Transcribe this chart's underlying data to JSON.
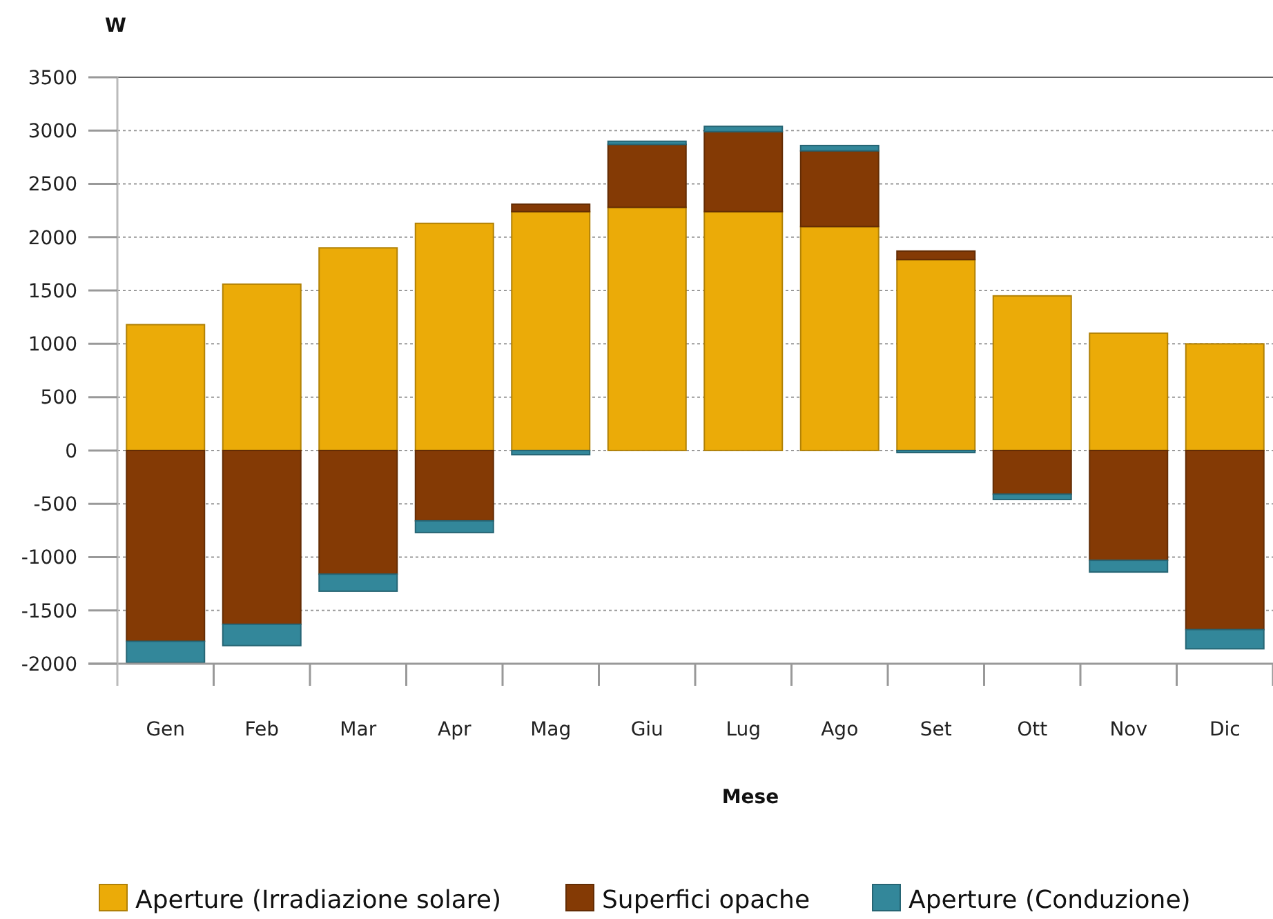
{
  "chart_data": {
    "type": "bar",
    "stacked": true,
    "xlabel": "Mese",
    "ylabel": "W",
    "categories": [
      "Gen",
      "Feb",
      "Mar",
      "Apr",
      "Mag",
      "Giu",
      "Lug",
      "Ago",
      "Set",
      "Ott",
      "Nov",
      "Dic"
    ],
    "series": [
      {
        "name": "Aperture (Irradiazione solare)",
        "color": "#ebab08",
        "values": [
          1180,
          1560,
          1900,
          2130,
          2240,
          2280,
          2240,
          2100,
          1790,
          1450,
          1100,
          1000
        ]
      },
      {
        "name": "Superfici opache",
        "color": "#843a05",
        "values": [
          -1790,
          -1630,
          -1160,
          -660,
          70,
          590,
          750,
          710,
          80,
          -410,
          -1030,
          -1680
        ]
      },
      {
        "name": "Aperture (Conduzione)",
        "color": "#33879a",
        "values": [
          -200,
          -200,
          -160,
          -110,
          -40,
          30,
          50,
          50,
          -20,
          -50,
          -110,
          -180
        ]
      }
    ],
    "ylim": [
      -2000,
      3500
    ],
    "yticks": [
      -2000,
      -1500,
      -1000,
      -500,
      0,
      500,
      1000,
      1500,
      2000,
      2500,
      3000,
      3500
    ],
    "grid": "y",
    "legend": "bottom"
  }
}
